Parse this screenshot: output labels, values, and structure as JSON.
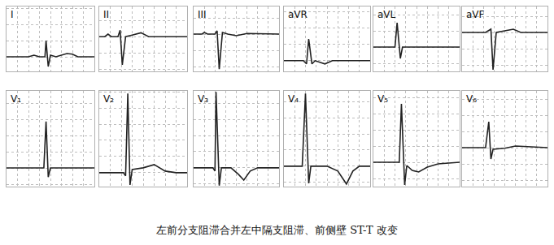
{
  "caption": "左前分支阻滞合并左中隔支阻滞、前侧壁 ST-T 改变",
  "chart_data": [
    {
      "type": "line",
      "title": "I",
      "color": "#222222",
      "grid": true,
      "tick_labels": false,
      "x": [
        0,
        0.2,
        0.25,
        0.3,
        0.35,
        0.36,
        0.38,
        0.4,
        0.45,
        0.55,
        0.6,
        0.65,
        0.8
      ],
      "values": [
        0,
        0,
        0.05,
        0,
        0,
        0.5,
        -0.3,
        0.05,
        0,
        0.1,
        0.08,
        0,
        0
      ],
      "xlim": [
        0,
        0.8
      ],
      "ylim": [
        -0.45,
        1.55
      ],
      "xticks": [
        0,
        0.1,
        0.2,
        0.3,
        0.4,
        0.5,
        0.6,
        0.7,
        0.8
      ],
      "yticks": [
        0,
        0.5,
        1,
        1.5
      ]
    },
    {
      "type": "line",
      "title": "II",
      "color": "#222222",
      "grid": true,
      "tick_labels": false,
      "x": [
        0,
        0.05,
        0.08,
        0.11,
        0.17,
        0.19,
        0.21,
        0.24,
        0.3,
        0.38,
        0.45,
        0.8
      ],
      "values": [
        0,
        0,
        0.08,
        0,
        0,
        0.2,
        -0.87,
        0,
        0.05,
        0.12,
        0,
        0
      ],
      "xlim": [
        0,
        0.8
      ],
      "ylim": [
        -1.07,
        0.93
      ],
      "xticks": [
        0,
        0.1,
        0.2,
        0.3,
        0.4,
        0.5,
        0.6,
        0.7,
        0.8
      ],
      "yticks": [
        -1,
        -0.5,
        0,
        0.5
      ]
    },
    {
      "type": "line",
      "title": "III",
      "color": "#222222",
      "grid": true,
      "tick_labels": false,
      "x": [
        0,
        0.08,
        0.1,
        0.13,
        0.2,
        0.22,
        0.24,
        0.27,
        0.32,
        0.4,
        0.5,
        0.8
      ],
      "values": [
        0,
        0,
        0.05,
        0,
        0,
        0.1,
        -1.08,
        0.05,
        0,
        -0.05,
        0.02,
        0
      ],
      "xlim": [
        0,
        0.8
      ],
      "ylim": [
        -1.15,
        0.85
      ],
      "xticks": [
        0,
        0.1,
        0.2,
        0.3,
        0.4,
        0.5,
        0.6,
        0.7,
        0.8
      ],
      "yticks": [
        -1,
        -0.5,
        0,
        0.5
      ]
    },
    {
      "type": "line",
      "title": "aVR",
      "color": "#222222",
      "grid": true,
      "tick_labels": false,
      "x": [
        0,
        0.18,
        0.21,
        0.23,
        0.26,
        0.29,
        0.38,
        0.45,
        0.8
      ],
      "values": [
        0,
        0,
        -0.1,
        0.67,
        -0.1,
        0,
        -0.1,
        0,
        0
      ],
      "xlim": [
        0,
        0.8
      ],
      "ylim": [
        -0.33,
        1.67
      ],
      "xticks": [
        0,
        0.1,
        0.2,
        0.3,
        0.4,
        0.5,
        0.6,
        0.7,
        0.8
      ],
      "yticks": [
        0,
        0.5,
        1,
        1.5
      ]
    },
    {
      "type": "line",
      "title": "aVL",
      "color": "#222222",
      "grid": true,
      "tick_labels": false,
      "x": [
        0,
        0.2,
        0.22,
        0.25,
        0.27,
        0.8
      ],
      "values": [
        0,
        0,
        0.75,
        -0.35,
        0,
        0
      ],
      "xlim": [
        0,
        0.8
      ],
      "ylim": [
        -0.75,
        1.25
      ],
      "xticks": [
        0,
        0.1,
        0.2,
        0.3,
        0.4,
        0.5,
        0.6,
        0.7,
        0.8
      ],
      "yticks": [
        -0.5,
        0,
        0.5,
        1
      ]
    },
    {
      "type": "line",
      "title": "aVF",
      "color": "#222222",
      "grid": true,
      "tick_labels": false,
      "x": [
        0,
        0.22,
        0.27,
        0.29,
        0.32,
        0.4,
        0.48,
        0.55,
        0.8
      ],
      "values": [
        0,
        0,
        0.1,
        -1.15,
        0,
        0.05,
        0.1,
        0,
        0
      ],
      "xlim": [
        0,
        0.8
      ],
      "ylim": [
        -1.2,
        0.8
      ],
      "xticks": [
        0,
        0.1,
        0.2,
        0.3,
        0.4,
        0.5,
        0.6,
        0.7,
        0.8
      ],
      "yticks": [
        -1,
        -0.5,
        0,
        0.5
      ]
    },
    {
      "type": "line",
      "title": "V₁",
      "color": "#222222",
      "grid": true,
      "tick_labels": false,
      "x": [
        0,
        0.34,
        0.36,
        0.38,
        0.4,
        0.8
      ],
      "values": [
        0,
        0,
        1.43,
        -0.28,
        0,
        0
      ],
      "xlim": [
        0,
        0.8
      ],
      "ylim": [
        -0.575,
        2.375
      ],
      "xticks": [
        0,
        0.1,
        0.2,
        0.3,
        0.4,
        0.5,
        0.6,
        0.7,
        0.8
      ],
      "yticks": [
        -0.5,
        0,
        0.5,
        1,
        1.5,
        2
      ]
    },
    {
      "type": "line",
      "title": "V₂",
      "color": "#222222",
      "grid": true,
      "tick_labels": false,
      "x": [
        0,
        0.22,
        0.24,
        0.26,
        0.28,
        0.3,
        0.4,
        0.5,
        0.6,
        0.7,
        0.8
      ],
      "values": [
        0,
        0,
        -0.1,
        2.45,
        -0.38,
        0.1,
        0.15,
        0.25,
        0.05,
        0,
        0
      ],
      "xlim": [
        0,
        0.8
      ],
      "ylim": [
        -0.43,
        2.53
      ],
      "xticks": [
        0,
        0.1,
        0.2,
        0.3,
        0.4,
        0.5,
        0.6,
        0.7,
        0.8
      ],
      "yticks": [
        0,
        0.5,
        1,
        1.5,
        2,
        2.5
      ]
    },
    {
      "type": "line",
      "title": "V₃",
      "color": "#222222",
      "grid": true,
      "tick_labels": false,
      "x": [
        0,
        0.18,
        0.2,
        0.21,
        0.24,
        0.26,
        0.35,
        0.42,
        0.47,
        0.53,
        0.6,
        0.8
      ],
      "values": [
        0,
        0,
        -0.1,
        2.35,
        -0.55,
        0,
        0,
        -0.2,
        -0.38,
        -0.1,
        0,
        0
      ],
      "xlim": [
        0,
        0.8
      ],
      "ylim": [
        -0.58,
        2.38
      ],
      "xticks": [
        0,
        0.1,
        0.2,
        0.3,
        0.4,
        0.5,
        0.6,
        0.7,
        0.8
      ],
      "yticks": [
        -0.5,
        0,
        0.5,
        1,
        1.5,
        2
      ]
    },
    {
      "type": "line",
      "title": "V₄",
      "color": "#222222",
      "grid": true,
      "tick_labels": false,
      "x": [
        0,
        0.17,
        0.2,
        0.23,
        0.25,
        0.4,
        0.5,
        0.58,
        0.64,
        0.7,
        0.8
      ],
      "values": [
        0,
        0,
        2.25,
        -0.53,
        0,
        0,
        -0.15,
        -0.55,
        -0.15,
        0,
        0
      ],
      "xlim": [
        0,
        0.8
      ],
      "ylim": [
        -0.63,
        2.33
      ],
      "xticks": [
        0,
        0.1,
        0.2,
        0.3,
        0.4,
        0.5,
        0.6,
        0.7,
        0.8
      ],
      "yticks": [
        -0.5,
        0,
        0.5,
        1,
        1.5,
        2
      ]
    },
    {
      "type": "line",
      "title": "V₅",
      "color": "#222222",
      "grid": true,
      "tick_labels": false,
      "x": [
        0,
        0.24,
        0.26,
        0.29,
        0.31,
        0.36,
        0.42,
        0.5,
        0.6,
        0.8
      ],
      "values": [
        0,
        0,
        1.8,
        -0.7,
        -0.1,
        -0.25,
        -0.3,
        -0.15,
        -0.05,
        0
      ],
      "xlim": [
        0,
        0.8
      ],
      "ylim": [
        -0.75,
        2.2
      ],
      "xticks": [
        0,
        0.1,
        0.2,
        0.3,
        0.4,
        0.5,
        0.6,
        0.7,
        0.8
      ],
      "yticks": [
        -0.5,
        0,
        0.5,
        1,
        1.5,
        2
      ]
    },
    {
      "type": "line",
      "title": "V₆",
      "color": "#222222",
      "grid": true,
      "tick_labels": false,
      "x": [
        0,
        0.22,
        0.25,
        0.27,
        0.29,
        0.4,
        0.5,
        0.8
      ],
      "values": [
        0,
        0,
        0.8,
        -0.35,
        -0.05,
        -0.02,
        0.05,
        0
      ],
      "xlim": [
        0,
        0.8
      ],
      "ylim": [
        -1.2,
        1.75
      ],
      "xticks": [
        0,
        0.1,
        0.2,
        0.3,
        0.4,
        0.5,
        0.6,
        0.7,
        0.8
      ],
      "yticks": [
        -1,
        -0.5,
        0,
        0.5,
        1,
        1.5
      ]
    }
  ]
}
